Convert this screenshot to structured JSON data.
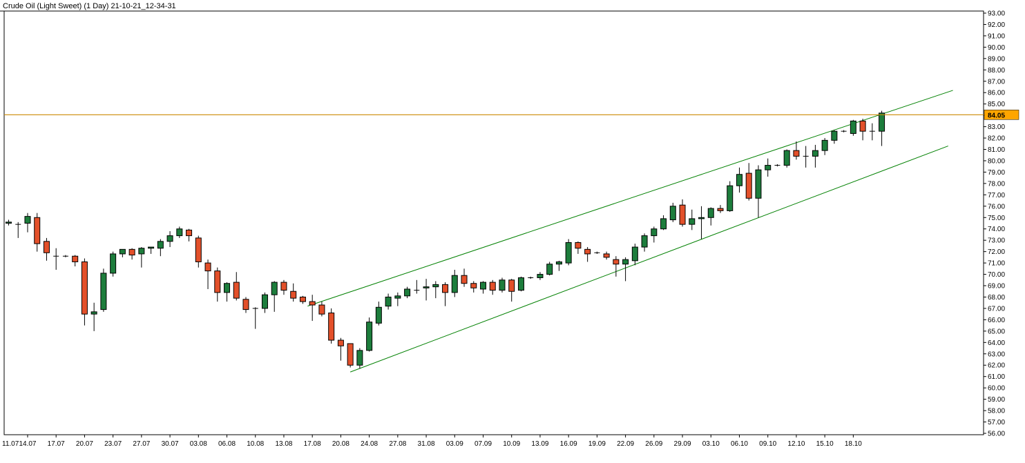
{
  "title": "Crude Oil (Light Sweet) (1 Day) 21-10-21_12-34-31",
  "chart_data": {
    "type": "candlestick",
    "ylim": [
      56,
      93
    ],
    "y_ticks": [
      "93.00",
      "92.00",
      "91.00",
      "90.00",
      "89.00",
      "88.00",
      "87.00",
      "86.00",
      "85.00",
      "84.00",
      "83.00",
      "82.00",
      "81.00",
      "80.00",
      "79.00",
      "78.00",
      "77.00",
      "76.00",
      "75.00",
      "74.00",
      "73.00",
      "72.00",
      "71.00",
      "70.00",
      "69.00",
      "68.00",
      "67.00",
      "66.00",
      "65.00",
      "64.00",
      "63.00",
      "62.00",
      "61.00",
      "60.00",
      "59.00",
      "58.00",
      "57.00",
      "56.00"
    ],
    "x_ticks": [
      {
        "label": "11.07",
        "index": -1
      },
      {
        "label": "14.07",
        "index": 2
      },
      {
        "label": "17.07",
        "index": 5
      },
      {
        "label": "20.07",
        "index": 8
      },
      {
        "label": "23.07",
        "index": 11
      },
      {
        "label": "27.07",
        "index": 14
      },
      {
        "label": "30.07",
        "index": 17
      },
      {
        "label": "03.08",
        "index": 20
      },
      {
        "label": "06.08",
        "index": 23
      },
      {
        "label": "10.08",
        "index": 26
      },
      {
        "label": "13.08",
        "index": 29
      },
      {
        "label": "17.08",
        "index": 32
      },
      {
        "label": "20.08",
        "index": 35
      },
      {
        "label": "24.08",
        "index": 38
      },
      {
        "label": "27.08",
        "index": 41
      },
      {
        "label": "31.08",
        "index": 44
      },
      {
        "label": "03.09",
        "index": 47
      },
      {
        "label": "07.09",
        "index": 50
      },
      {
        "label": "10.09",
        "index": 53
      },
      {
        "label": "13.09",
        "index": 56
      },
      {
        "label": "16.09",
        "index": 59
      },
      {
        "label": "19.09",
        "index": 62
      },
      {
        "label": "22.09",
        "index": 65
      },
      {
        "label": "26.09",
        "index": 68
      },
      {
        "label": "29.09",
        "index": 71
      },
      {
        "label": "03.10",
        "index": 74
      },
      {
        "label": "06.10",
        "index": 77
      },
      {
        "label": "09.10",
        "index": 80
      },
      {
        "label": "12.10",
        "index": 83
      },
      {
        "label": "15.10",
        "index": 86
      },
      {
        "label": "18.10",
        "index": 89
      }
    ],
    "candles": [
      {
        "o": 74.5,
        "h": 74.8,
        "l": 74.3,
        "c": 74.6
      },
      {
        "o": 74.4,
        "h": 74.6,
        "l": 73.2,
        "c": 74.4
      },
      {
        "o": 74.5,
        "h": 75.4,
        "l": 73.7,
        "c": 75.1
      },
      {
        "o": 75.0,
        "h": 75.4,
        "l": 72.0,
        "c": 72.7
      },
      {
        "o": 72.9,
        "h": 73.2,
        "l": 71.2,
        "c": 71.9
      },
      {
        "o": 71.6,
        "h": 72.3,
        "l": 70.4,
        "c": 71.6
      },
      {
        "o": 71.6,
        "h": 71.7,
        "l": 71.5,
        "c": 71.6
      },
      {
        "o": 71.6,
        "h": 71.7,
        "l": 70.7,
        "c": 71.1
      },
      {
        "o": 71.1,
        "h": 71.4,
        "l": 65.5,
        "c": 66.5
      },
      {
        "o": 66.5,
        "h": 67.5,
        "l": 65.0,
        "c": 66.7
      },
      {
        "o": 66.9,
        "h": 70.5,
        "l": 66.7,
        "c": 70.1
      },
      {
        "o": 70.1,
        "h": 72.0,
        "l": 69.8,
        "c": 71.8
      },
      {
        "o": 71.8,
        "h": 72.2,
        "l": 71.5,
        "c": 72.2
      },
      {
        "o": 72.2,
        "h": 72.3,
        "l": 71.3,
        "c": 71.7
      },
      {
        "o": 71.8,
        "h": 72.4,
        "l": 70.6,
        "c": 72.3
      },
      {
        "o": 72.3,
        "h": 72.4,
        "l": 71.8,
        "c": 72.4
      },
      {
        "o": 72.3,
        "h": 73.1,
        "l": 71.6,
        "c": 72.9
      },
      {
        "o": 72.9,
        "h": 73.8,
        "l": 72.4,
        "c": 73.4
      },
      {
        "o": 73.4,
        "h": 74.2,
        "l": 73.2,
        "c": 74.0
      },
      {
        "o": 73.9,
        "h": 74.0,
        "l": 72.9,
        "c": 73.4
      },
      {
        "o": 73.2,
        "h": 73.4,
        "l": 70.6,
        "c": 71.1
      },
      {
        "o": 71.0,
        "h": 71.3,
        "l": 68.7,
        "c": 70.3
      },
      {
        "o": 70.3,
        "h": 70.6,
        "l": 67.6,
        "c": 68.4
      },
      {
        "o": 68.4,
        "h": 69.3,
        "l": 67.6,
        "c": 69.2
      },
      {
        "o": 69.3,
        "h": 70.2,
        "l": 67.7,
        "c": 67.9
      },
      {
        "o": 67.8,
        "h": 68.0,
        "l": 66.6,
        "c": 66.9
      },
      {
        "o": 67.0,
        "h": 67.1,
        "l": 65.2,
        "c": 67.0
      },
      {
        "o": 67.0,
        "h": 68.4,
        "l": 66.6,
        "c": 68.2
      },
      {
        "o": 68.2,
        "h": 69.4,
        "l": 66.7,
        "c": 69.3
      },
      {
        "o": 69.3,
        "h": 69.5,
        "l": 68.2,
        "c": 68.6
      },
      {
        "o": 68.5,
        "h": 69.2,
        "l": 67.6,
        "c": 67.9
      },
      {
        "o": 68.0,
        "h": 68.1,
        "l": 67.4,
        "c": 67.6
      },
      {
        "o": 67.6,
        "h": 68.2,
        "l": 65.9,
        "c": 67.3
      },
      {
        "o": 67.3,
        "h": 67.6,
        "l": 66.3,
        "c": 66.5
      },
      {
        "o": 66.6,
        "h": 67.0,
        "l": 63.9,
        "c": 64.2
      },
      {
        "o": 64.2,
        "h": 64.4,
        "l": 62.4,
        "c": 63.7
      },
      {
        "o": 63.9,
        "h": 63.9,
        "l": 61.8,
        "c": 62.0
      },
      {
        "o": 62.0,
        "h": 63.5,
        "l": 61.7,
        "c": 63.3
      },
      {
        "o": 63.3,
        "h": 66.2,
        "l": 63.2,
        "c": 65.8
      },
      {
        "o": 65.7,
        "h": 67.6,
        "l": 65.5,
        "c": 67.1
      },
      {
        "o": 67.2,
        "h": 68.3,
        "l": 66.9,
        "c": 68.0
      },
      {
        "o": 67.9,
        "h": 68.4,
        "l": 67.2,
        "c": 68.1
      },
      {
        "o": 68.1,
        "h": 68.9,
        "l": 67.9,
        "c": 68.7
      },
      {
        "o": 68.6,
        "h": 69.5,
        "l": 68.3,
        "c": 68.6
      },
      {
        "o": 68.8,
        "h": 69.6,
        "l": 67.7,
        "c": 68.9
      },
      {
        "o": 68.9,
        "h": 69.4,
        "l": 67.9,
        "c": 69.1
      },
      {
        "o": 69.1,
        "h": 69.3,
        "l": 67.2,
        "c": 68.4
      },
      {
        "o": 68.4,
        "h": 70.4,
        "l": 68.0,
        "c": 69.9
      },
      {
        "o": 69.9,
        "h": 70.5,
        "l": 68.9,
        "c": 69.2
      },
      {
        "o": 69.2,
        "h": 69.4,
        "l": 68.4,
        "c": 68.8
      },
      {
        "o": 68.7,
        "h": 69.4,
        "l": 68.3,
        "c": 69.3
      },
      {
        "o": 69.3,
        "h": 69.5,
        "l": 68.2,
        "c": 68.6
      },
      {
        "o": 68.6,
        "h": 69.7,
        "l": 68.4,
        "c": 69.5
      },
      {
        "o": 69.5,
        "h": 69.6,
        "l": 67.6,
        "c": 68.5
      },
      {
        "o": 68.6,
        "h": 69.8,
        "l": 68.5,
        "c": 69.7
      },
      {
        "o": 69.7,
        "h": 69.8,
        "l": 69.6,
        "c": 69.7
      },
      {
        "o": 69.7,
        "h": 70.2,
        "l": 69.5,
        "c": 70.0
      },
      {
        "o": 70.0,
        "h": 71.1,
        "l": 69.9,
        "c": 70.9
      },
      {
        "o": 70.9,
        "h": 71.2,
        "l": 70.3,
        "c": 71.1
      },
      {
        "o": 71.0,
        "h": 73.1,
        "l": 70.8,
        "c": 72.8
      },
      {
        "o": 72.8,
        "h": 72.9,
        "l": 71.8,
        "c": 72.3
      },
      {
        "o": 72.2,
        "h": 72.4,
        "l": 71.1,
        "c": 71.8
      },
      {
        "o": 71.9,
        "h": 72.0,
        "l": 71.8,
        "c": 71.9
      },
      {
        "o": 71.8,
        "h": 72.0,
        "l": 71.3,
        "c": 71.5
      },
      {
        "o": 71.3,
        "h": 71.6,
        "l": 69.8,
        "c": 70.9
      },
      {
        "o": 70.9,
        "h": 71.5,
        "l": 69.4,
        "c": 71.3
      },
      {
        "o": 71.2,
        "h": 72.7,
        "l": 70.8,
        "c": 72.4
      },
      {
        "o": 72.4,
        "h": 73.6,
        "l": 72.0,
        "c": 73.4
      },
      {
        "o": 73.4,
        "h": 74.2,
        "l": 72.8,
        "c": 74.0
      },
      {
        "o": 74.0,
        "h": 75.2,
        "l": 73.9,
        "c": 74.9
      },
      {
        "o": 74.8,
        "h": 76.3,
        "l": 74.6,
        "c": 76.0
      },
      {
        "o": 76.1,
        "h": 76.6,
        "l": 74.2,
        "c": 74.4
      },
      {
        "o": 74.4,
        "h": 75.7,
        "l": 73.9,
        "c": 74.9
      },
      {
        "o": 74.9,
        "h": 76.0,
        "l": 73.1,
        "c": 75.0
      },
      {
        "o": 75.0,
        "h": 75.9,
        "l": 74.3,
        "c": 75.8
      },
      {
        "o": 75.8,
        "h": 76.1,
        "l": 75.4,
        "c": 75.6
      },
      {
        "o": 75.6,
        "h": 78.2,
        "l": 75.5,
        "c": 77.8
      },
      {
        "o": 77.8,
        "h": 79.4,
        "l": 77.2,
        "c": 78.8
      },
      {
        "o": 78.9,
        "h": 79.8,
        "l": 76.5,
        "c": 76.7
      },
      {
        "o": 76.7,
        "h": 79.6,
        "l": 75.0,
        "c": 79.2
      },
      {
        "o": 79.2,
        "h": 80.2,
        "l": 78.6,
        "c": 79.6
      },
      {
        "o": 79.6,
        "h": 79.7,
        "l": 79.5,
        "c": 79.6
      },
      {
        "o": 79.6,
        "h": 81.0,
        "l": 79.4,
        "c": 80.9
      },
      {
        "o": 80.9,
        "h": 81.7,
        "l": 80.1,
        "c": 80.4
      },
      {
        "o": 80.4,
        "h": 81.3,
        "l": 79.4,
        "c": 80.4
      },
      {
        "o": 80.4,
        "h": 81.4,
        "l": 79.4,
        "c": 80.9
      },
      {
        "o": 80.9,
        "h": 82.0,
        "l": 80.5,
        "c": 81.8
      },
      {
        "o": 81.8,
        "h": 82.7,
        "l": 81.5,
        "c": 82.6
      },
      {
        "o": 82.6,
        "h": 82.7,
        "l": 82.5,
        "c": 82.6
      },
      {
        "o": 82.4,
        "h": 83.6,
        "l": 82.2,
        "c": 83.5
      },
      {
        "o": 83.5,
        "h": 83.7,
        "l": 81.8,
        "c": 82.6
      },
      {
        "o": 82.6,
        "h": 83.3,
        "l": 81.8,
        "c": 82.6
      },
      {
        "o": 82.6,
        "h": 84.4,
        "l": 81.3,
        "c": 84.2
      }
    ],
    "channel_lines": [
      {
        "name": "upper-channel",
        "color": "#008000",
        "x0_index": 31.5,
        "y0": 67.2,
        "x1_index": 99.5,
        "y1": 86.2
      },
      {
        "name": "lower-channel",
        "color": "#008000",
        "x0_index": 36,
        "y0": 61.4,
        "x1_index": 99,
        "y1": 81.3
      }
    ],
    "price_line": {
      "value": 84.05,
      "label": "84.05",
      "color": "#cc8800"
    },
    "colors": {
      "up": "#1d7d3c",
      "down": "#e3502a",
      "wick": "#000000",
      "axis": "#000000",
      "price_label_bg": "#ffa500"
    }
  }
}
